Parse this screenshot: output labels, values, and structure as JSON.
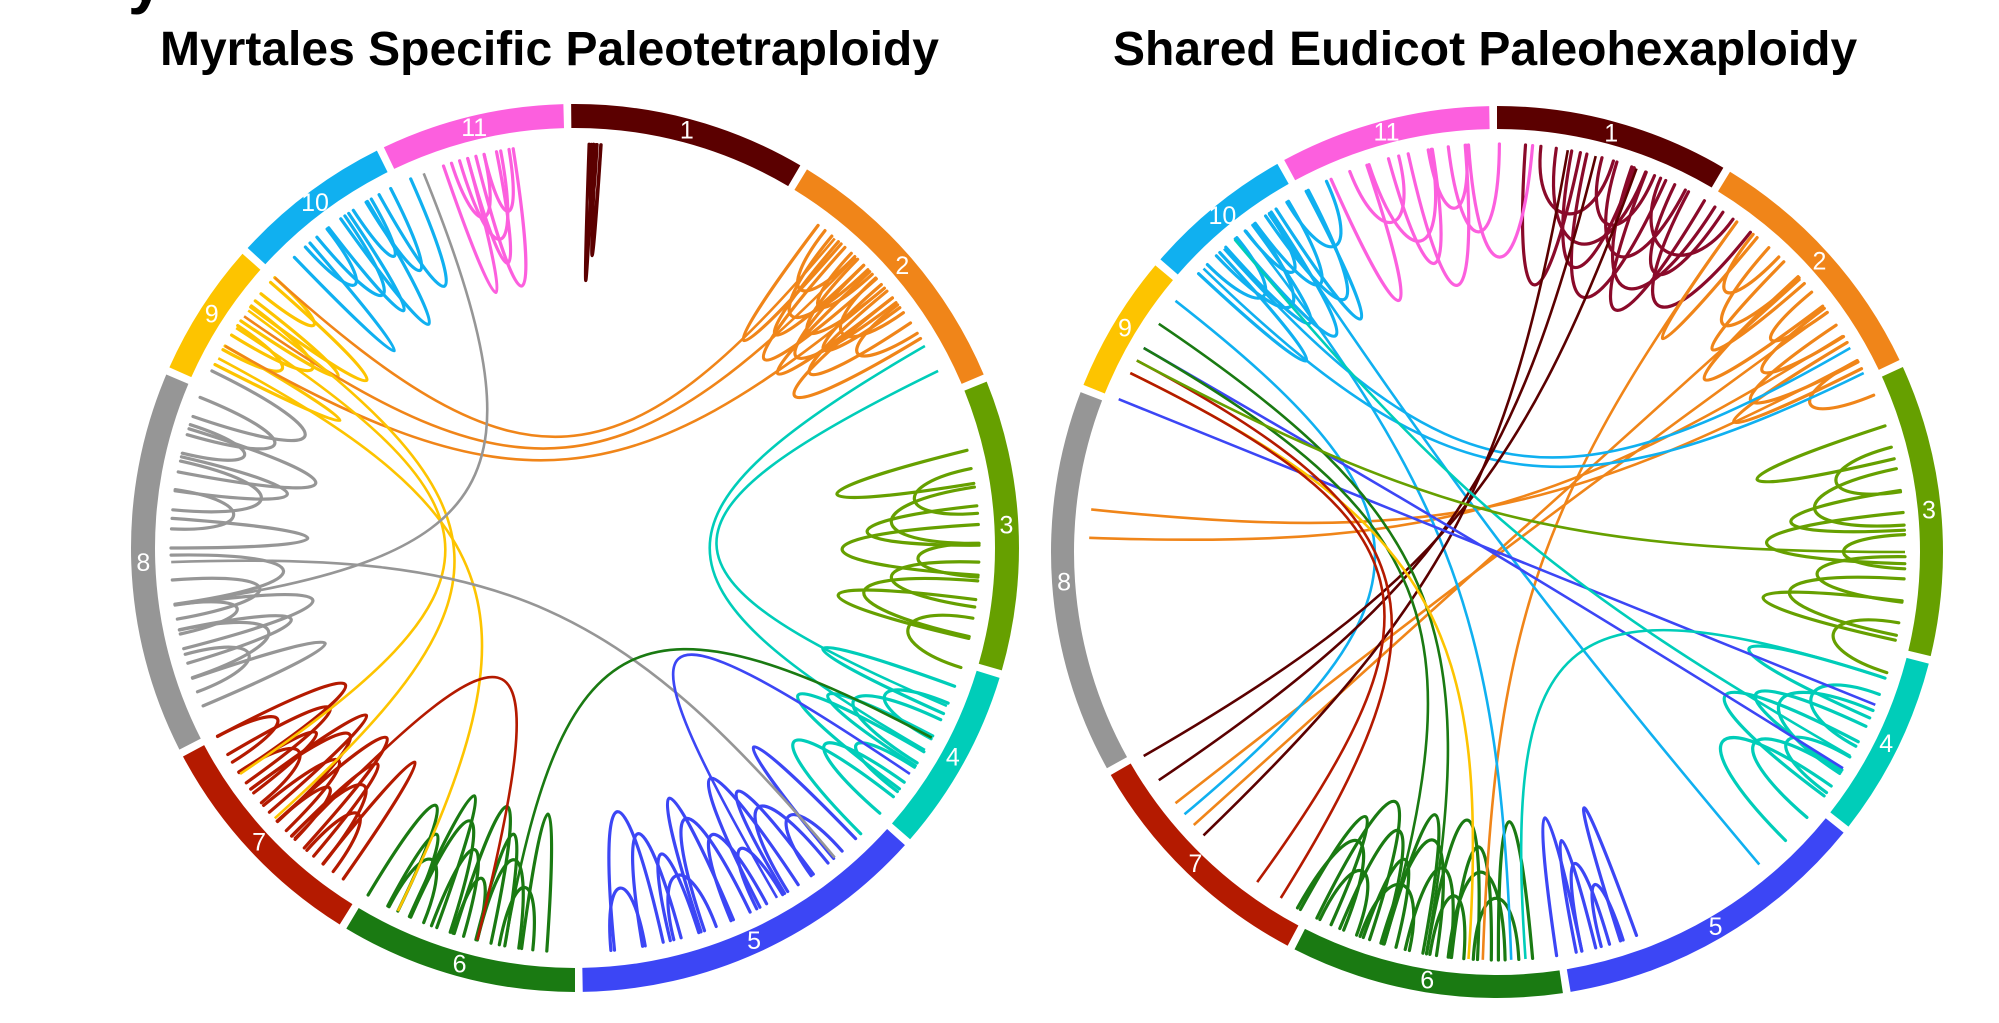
{
  "panel_letter": "y",
  "panels": [
    {
      "id": "left",
      "title": "Myrtales Specific Paleotetraploidy",
      "segments": [
        {
          "label": "1",
          "color": "#5b0000",
          "start": -0.5,
          "end": 30.5
        },
        {
          "label": "2",
          "color": "#f08519",
          "start": 31.5,
          "end": 67.0
        },
        {
          "label": "3",
          "color": "#66a000",
          "start": 68.0,
          "end": 106.0
        },
        {
          "label": "4",
          "color": "#00cdb9",
          "start": 107.0,
          "end": 131.0
        },
        {
          "label": "5",
          "color": "#3c46f5",
          "start": 132.0,
          "end": 179.0
        },
        {
          "label": "6",
          "color": "#1a7a12",
          "start": 180.0,
          "end": 211.0
        },
        {
          "label": "7",
          "color": "#b41a00",
          "start": 212.0,
          "end": 242.0
        },
        {
          "label": "8",
          "color": "#969696",
          "start": 243.0,
          "end": 293.0
        },
        {
          "label": "9",
          "color": "#fdc400",
          "start": 294.0,
          "end": 311.5
        },
        {
          "label": "10",
          "color": "#10b0f0",
          "start": 312.5,
          "end": 333.5
        },
        {
          "label": "11",
          "color": "#fc5fde",
          "start": 334.5,
          "end": 358.5
        }
      ],
      "links": [
        {
          "seg": 0,
          "color": "#5b0000",
          "fans": [
            [
              2,
              3,
              4,
              1
            ]
          ]
        },
        {
          "seg": 10,
          "color": "#fc5fde",
          "fans": [
            [
              341,
              347,
              6,
              6
            ]
          ]
        },
        {
          "seg": 1,
          "color": "#f08519",
          "fans": [
            [
              37,
              53,
              14,
              7
            ]
          ]
        },
        {
          "seg": 2,
          "color": "#66a000",
          "fans": [
            [
              76,
              100,
              10,
              8
            ]
          ]
        },
        {
          "seg": 3,
          "color": "#00cdb9",
          "fans": [
            [
              110,
              128,
              8,
              7
            ]
          ]
        },
        {
          "seg": 4,
          "color": "#3c46f5",
          "fans": [
            [
              136,
              170,
              14,
              7
            ]
          ]
        },
        {
          "seg": 5,
          "color": "#1a7a12",
          "fans": [
            [
              184,
              206,
              12,
              6
            ]
          ]
        },
        {
          "seg": 6,
          "color": "#b41a00",
          "fans": [
            [
              215,
              238,
              14,
              6
            ]
          ]
        },
        {
          "seg": 7,
          "color": "#969696",
          "fans": [
            [
              247,
              262,
              8,
              7
            ],
            [
              270,
              289,
              8,
              7
            ]
          ]
        },
        {
          "seg": 8,
          "color": "#fdc400",
          "fans": [
            [
              297,
              309,
              6,
              5
            ]
          ]
        },
        {
          "seg": 9,
          "color": "#10b0f0",
          "fans": [
            [
              316,
              331,
              8,
              5
            ]
          ]
        }
      ],
      "chords": [
        {
          "color": "#f08519",
          "a": 40,
          "b": 312
        },
        {
          "color": "#f08519",
          "a": 44,
          "b": 305
        },
        {
          "color": "#f08519",
          "a": 50,
          "b": 300
        },
        {
          "color": "#00cdb9",
          "a": 60,
          "b": 120
        },
        {
          "color": "#00cdb9",
          "a": 64,
          "b": 113
        },
        {
          "color": "#fdc400",
          "a": 298,
          "b": 206
        },
        {
          "color": "#fdc400",
          "a": 303,
          "b": 236
        },
        {
          "color": "#fdc400",
          "a": 306,
          "b": 228
        },
        {
          "color": "#969696",
          "a": 338,
          "b": 262
        },
        {
          "color": "#969696",
          "a": 268,
          "b": 140
        },
        {
          "color": "#1a7a12",
          "a": 190,
          "b": 118
        },
        {
          "color": "#3c46f5",
          "a": 150,
          "b": 124
        },
        {
          "color": "#b41a00",
          "a": 224,
          "b": 194
        }
      ]
    },
    {
      "id": "right",
      "title": "Shared Eudicot Paleohexaploidy",
      "segments": [
        {
          "label": "1",
          "color": "#5b0000",
          "start": 0.0,
          "end": 30.5
        },
        {
          "label": "2",
          "color": "#f08519",
          "start": 31.5,
          "end": 64.5
        },
        {
          "label": "3",
          "color": "#66a000",
          "start": 65.5,
          "end": 103.5
        },
        {
          "label": "4",
          "color": "#00cdb9",
          "start": 104.5,
          "end": 128.0
        },
        {
          "label": "5",
          "color": "#3c46f5",
          "start": 129.0,
          "end": 170.5
        },
        {
          "label": "6",
          "color": "#1a7a12",
          "start": 171.5,
          "end": 207.0
        },
        {
          "label": "7",
          "color": "#b41a00",
          "start": 208.0,
          "end": 240.0
        },
        {
          "label": "8",
          "color": "#969696",
          "start": 241.0,
          "end": 291.0
        },
        {
          "label": "9",
          "color": "#fdc400",
          "start": 292.0,
          "end": 310.0
        },
        {
          "label": "10",
          "color": "#10b0f0",
          "start": 311.0,
          "end": 330.5
        },
        {
          "label": "11",
          "color": "#fc5fde",
          "start": 331.5,
          "end": 359.0
        }
      ],
      "links": [
        {
          "seg": 0,
          "color": "#8a0a2a",
          "fans": [
            [
              4,
              28,
              12,
              13
            ]
          ]
        },
        {
          "seg": 10,
          "color": "#fc5fde",
          "fans": [
            [
              336,
              356,
              8,
              9
            ]
          ]
        },
        {
          "seg": 2,
          "color": "#66a000",
          "fans": [
            [
              72,
              100,
              10,
              8
            ]
          ]
        },
        {
          "seg": 3,
          "color": "#00cdb9",
          "fans": [
            [
              108,
              125,
              8,
              10
            ]
          ]
        },
        {
          "seg": 4,
          "color": "#3c46f5",
          "fans": [
            [
              160,
              168,
              5,
              4
            ]
          ]
        },
        {
          "seg": 5,
          "color": "#1a7a12",
          "fans": [
            [
              175,
              204,
              16,
              8
            ]
          ]
        },
        {
          "seg": 1,
          "color": "#f08519",
          "fans": [
            [
              36,
              62,
              10,
              6
            ]
          ]
        },
        {
          "seg": 9,
          "color": "#10b0f0",
          "fans": [
            [
              313,
              329,
              10,
              7
            ]
          ]
        }
      ],
      "chords": [
        {
          "color": "#f08519",
          "a": 48,
          "b": 228
        },
        {
          "color": "#f08519",
          "a": 54,
          "b": 232
        },
        {
          "color": "#f08519",
          "a": 58,
          "b": 272
        },
        {
          "color": "#f08519",
          "a": 62,
          "b": 276
        },
        {
          "color": "#f08519",
          "a": 36,
          "b": 182
        },
        {
          "color": "#10b0f0",
          "a": 314,
          "b": 64
        },
        {
          "color": "#10b0f0",
          "a": 318,
          "b": 60
        },
        {
          "color": "#10b0f0",
          "a": 322,
          "b": 178
        },
        {
          "color": "#10b0f0",
          "a": 326,
          "b": 140
        },
        {
          "color": "#10b0f0",
          "a": 308,
          "b": 230
        },
        {
          "color": "#5b0000",
          "a": 14,
          "b": 236
        },
        {
          "color": "#5b0000",
          "a": 20,
          "b": 240
        },
        {
          "color": "#5b0000",
          "a": 10,
          "b": 226
        },
        {
          "color": "#3c46f5",
          "a": 292,
          "b": 112
        },
        {
          "color": "#3c46f5",
          "a": 300,
          "b": 122
        },
        {
          "color": "#1a7a12",
          "a": 304,
          "b": 190
        },
        {
          "color": "#1a7a12",
          "a": 300,
          "b": 196
        },
        {
          "color": "#fdc400",
          "a": 296,
          "b": 184
        },
        {
          "color": "#00cdb9",
          "a": 108,
          "b": 176
        },
        {
          "color": "#00cdb9",
          "a": 120,
          "b": 320
        },
        {
          "color": "#b41a00",
          "a": 216,
          "b": 296
        },
        {
          "color": "#b41a00",
          "a": 212,
          "b": 298
        },
        {
          "color": "#66a000",
          "a": 90,
          "b": 298
        }
      ]
    }
  ]
}
